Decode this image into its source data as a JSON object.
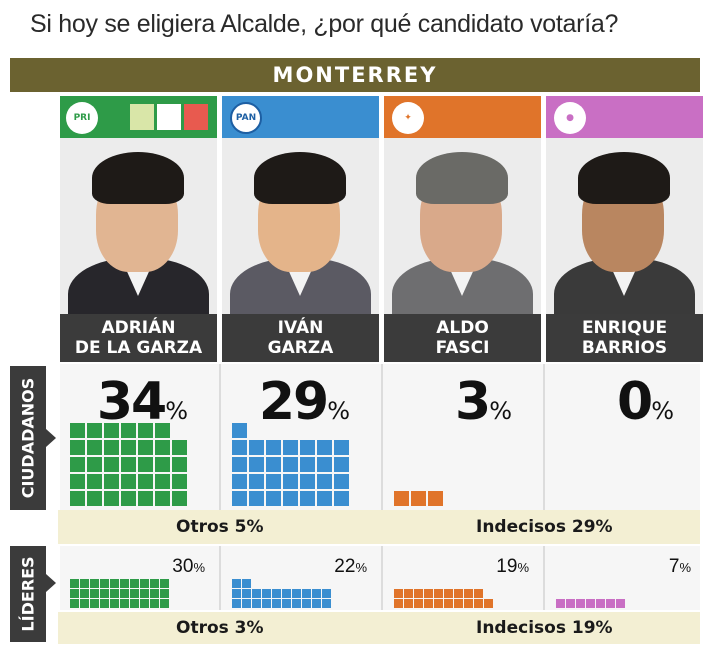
{
  "title": "Si hoy se eligiera Alcalde, ¿por qué candidato votaría?",
  "city": "MONTERREY",
  "candidates": [
    {
      "first": "ADRIÁN",
      "last": "DE LA GARZA",
      "party_logo": "PRI",
      "color": "#2e9b48",
      "ciudadanos": "34",
      "lideres": "30"
    },
    {
      "first": "IVÁN",
      "last": "GARZA",
      "party_logo": "PAN",
      "color": "#3a8ed0",
      "ciudadanos": "29",
      "lideres": "22"
    },
    {
      "first": "ALDO",
      "last": "FASCI",
      "party_logo": "MC",
      "color": "#e0742a",
      "ciudadanos": "3",
      "lideres": "19"
    },
    {
      "first": "ENRIQUE",
      "last": "BARRIOS",
      "party_logo": "",
      "color": "#c96fc4",
      "ciudadanos": "0",
      "lideres": "7"
    }
  ],
  "pct_symbol": "%",
  "rows": {
    "ciudadanos": {
      "label": "CIUDADANOS",
      "otros": "Otros 5%",
      "indecisos": "Indecisos 29%"
    },
    "lideres": {
      "label": "LÍDERES",
      "otros": "Otros 3%",
      "indecisos": "Indecisos 19%"
    }
  },
  "chart_data": [
    {
      "type": "bar",
      "categories": [
        "ADRIÁN DE LA GARZA",
        "IVÁN GARZA",
        "ALDO FASCI",
        "ENRIQUE BARRIOS"
      ],
      "values": [
        34,
        29,
        3,
        0
      ],
      "title": "CIUDADANOS",
      "notes": [
        "Otros 5%",
        "Indecisos 29%"
      ],
      "colors": [
        "#2e9b48",
        "#3a8ed0",
        "#e0742a",
        "#c96fc4"
      ]
    },
    {
      "type": "bar",
      "categories": [
        "ADRIÁN DE LA GARZA",
        "IVÁN GARZA",
        "ALDO FASCI",
        "ENRIQUE BARRIOS"
      ],
      "values": [
        30,
        22,
        19,
        7
      ],
      "title": "LÍDERES",
      "notes": [
        "Otros 3%",
        "Indecisos 19%"
      ],
      "colors": [
        "#2e9b48",
        "#3a8ed0",
        "#e0742a",
        "#c96fc4"
      ]
    }
  ]
}
